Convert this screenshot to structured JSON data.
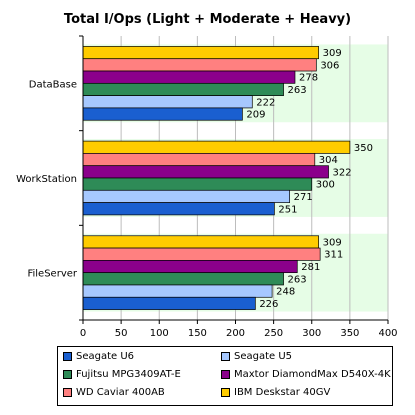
{
  "chart_data": {
    "type": "bar",
    "orientation": "horizontal",
    "title": "Total I/Ops (Light + Moderate + Heavy)",
    "categories": [
      "DataBase",
      "WorkStation",
      "FileServer"
    ],
    "series": [
      {
        "name": "Seagate U6",
        "color": "#1a5fd0",
        "values": [
          209,
          251,
          226
        ]
      },
      {
        "name": "Seagate U5",
        "color": "#a6c8ff",
        "values": [
          222,
          271,
          248
        ]
      },
      {
        "name": "Fujitsu MPG3409AT-E",
        "color": "#2e8b57",
        "values": [
          263,
          300,
          263
        ]
      },
      {
        "name": "Maxtor DiamondMax D540X-4K",
        "color": "#8b008b",
        "values": [
          278,
          322,
          281
        ]
      },
      {
        "name": "WD Caviar 400AB",
        "color": "#ff8080",
        "values": [
          306,
          304,
          311
        ]
      },
      {
        "name": "IBM Deskstar 40GV",
        "color": "#ffcc00",
        "values": [
          309,
          350,
          309
        ]
      }
    ],
    "xlim": [
      0,
      400
    ],
    "xticks": [
      0,
      50,
      100,
      150,
      200,
      250,
      300,
      350,
      400
    ],
    "grid": true,
    "legend_position": "bottom"
  },
  "colors": {
    "plot_background": "#ffffff",
    "band_fill": "#e6fde6",
    "grid_line": "#bdbdbd"
  }
}
